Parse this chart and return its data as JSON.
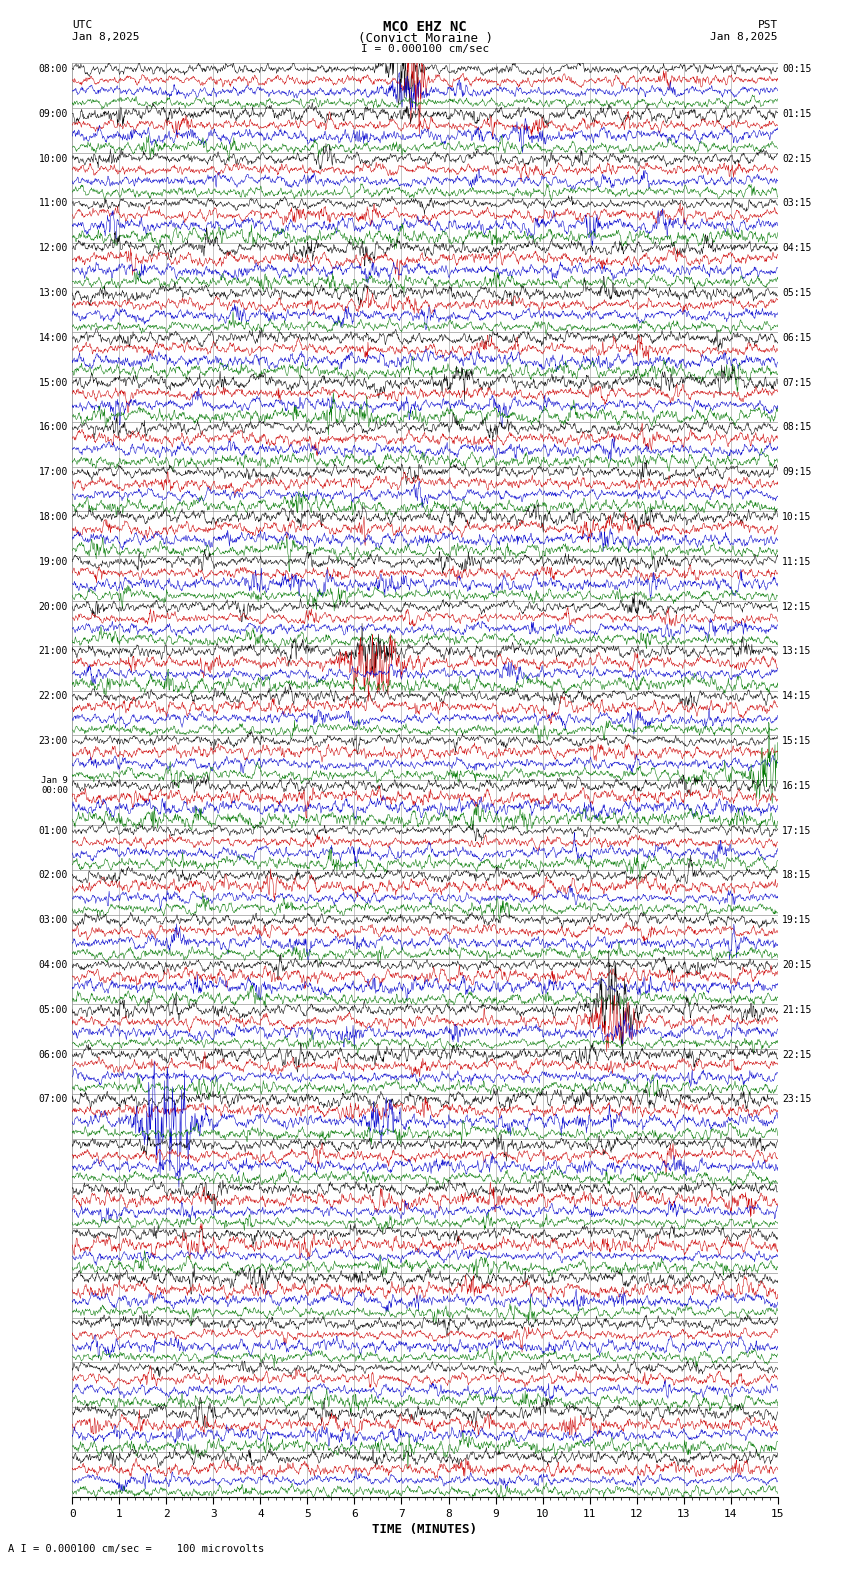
{
  "title_line1": "MCO EHZ NC",
  "title_line2": "(Convict Moraine )",
  "scale_label": "I = 0.000100 cm/sec",
  "footer_label": "A I = 0.000100 cm/sec =    100 microvolts",
  "utc_label": "UTC",
  "pst_label": "PST",
  "date_left": "Jan 8,2025",
  "date_right": "Jan 8,2025",
  "xlabel": "TIME (MINUTES)",
  "bg_color": "#ffffff",
  "trace_colors": [
    "#000000",
    "#cc0000",
    "#0000cc",
    "#007700"
  ],
  "grid_color": "#999999",
  "n_rows": 32,
  "traces_per_row": 4,
  "utc_labels": [
    "08:00",
    "09:00",
    "10:00",
    "11:00",
    "12:00",
    "13:00",
    "14:00",
    "15:00",
    "16:00",
    "17:00",
    "18:00",
    "19:00",
    "20:00",
    "21:00",
    "22:00",
    "23:00",
    "Jan 9\n00:00",
    "01:00",
    "02:00",
    "03:00",
    "04:00",
    "05:00",
    "06:00",
    "07:00"
  ],
  "pst_labels": [
    "00:15",
    "01:15",
    "02:15",
    "03:15",
    "04:15",
    "05:15",
    "06:15",
    "07:15",
    "08:15",
    "09:15",
    "10:15",
    "11:15",
    "12:15",
    "13:15",
    "14:15",
    "15:15",
    "16:15",
    "17:15",
    "18:15",
    "19:15",
    "20:15",
    "21:15",
    "22:15",
    "23:15"
  ],
  "noise_seed": 12345,
  "figsize": [
    8.5,
    15.84
  ],
  "dpi": 100
}
